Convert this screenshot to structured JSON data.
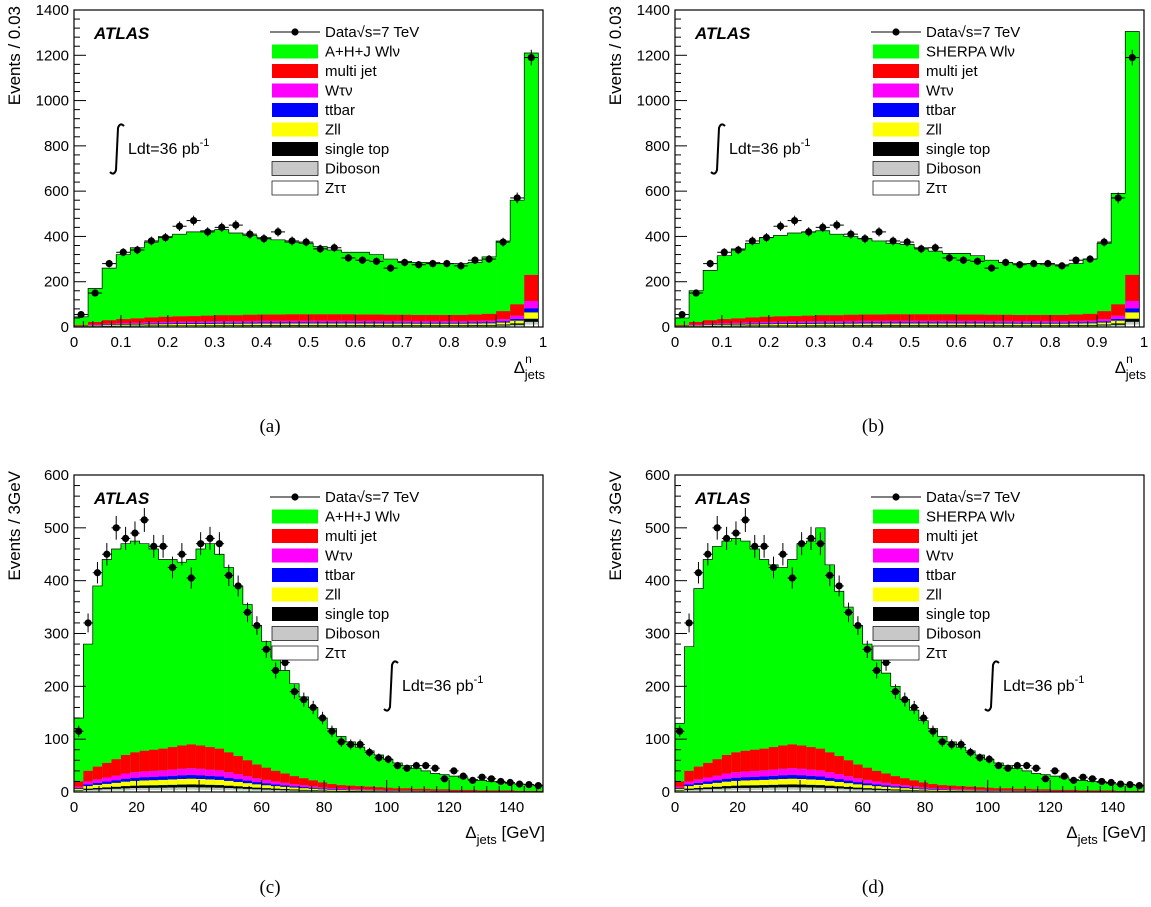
{
  "colors": {
    "multijet": "#ff0000",
    "wtaunu": "#ff00ff",
    "ttbar": "#0000ff",
    "zll": "#ffff00",
    "singletop": "#000000",
    "diboson": "#c8c8c8",
    "ztautau": "#ffffff",
    "signal": "#00ff00",
    "data": "#000000"
  },
  "chart_data": [
    {
      "type": "bar",
      "panel_caption": "(a)",
      "atlas_label": "ATLAS",
      "lumi_label": "Ldt=36 pb",
      "lumi_sup": "-1",
      "ylabel": "Events / 0.03",
      "xlabel": "Δ",
      "xlabel_sup": "n",
      "xlabel_sub": "jets",
      "xlabel_suffix": "",
      "xlim": [
        0,
        1
      ],
      "ylim": [
        0,
        1400
      ],
      "xticks": [
        0,
        0.1,
        0.2,
        0.3,
        0.4,
        0.5,
        0.6,
        0.7,
        0.8,
        0.9,
        1
      ],
      "xtick_labels": [
        "0",
        "0.1",
        "0.2",
        "0.3",
        "0.4",
        "0.5",
        "0.6",
        "0.7",
        "0.8",
        "0.9",
        "1"
      ],
      "yticks": [
        0,
        200,
        400,
        600,
        800,
        1000,
        1200,
        1400
      ],
      "legend": [
        {
          "label": "Data√s=7 TeV",
          "kind": "data"
        },
        {
          "label": "A+H+J Wlν",
          "kind": "signal"
        },
        {
          "label": "multi jet",
          "kind": "multijet"
        },
        {
          "label": "Wτν",
          "kind": "wtaunu"
        },
        {
          "label": "ttbar",
          "kind": "ttbar"
        },
        {
          "label": "Zll",
          "kind": "zll"
        },
        {
          "label": "single top",
          "kind": "singletop"
        },
        {
          "label": "Diboson",
          "kind": "diboson"
        },
        {
          "label": "Zττ",
          "kind": "ztautau"
        }
      ],
      "bin_edges": [
        0,
        0.03,
        0.06,
        0.09,
        0.12,
        0.15,
        0.18,
        0.21,
        0.24,
        0.27,
        0.3,
        0.33,
        0.36,
        0.39,
        0.42,
        0.45,
        0.48,
        0.51,
        0.54,
        0.57,
        0.6,
        0.63,
        0.66,
        0.69,
        0.72,
        0.75,
        0.78,
        0.81,
        0.84,
        0.87,
        0.9,
        0.93,
        0.96,
        0.99
      ],
      "stack_totals": [
        45,
        170,
        260,
        320,
        350,
        375,
        400,
        410,
        420,
        425,
        430,
        415,
        405,
        395,
        385,
        375,
        370,
        355,
        340,
        330,
        330,
        320,
        300,
        290,
        285,
        285,
        280,
        280,
        285,
        310,
        380,
        560,
        1210
      ],
      "background_sum": [
        8,
        22,
        30,
        35,
        38,
        42,
        45,
        47,
        48,
        50,
        52,
        52,
        54,
        55,
        55,
        56,
        56,
        56,
        56,
        56,
        55,
        55,
        54,
        54,
        53,
        53,
        53,
        53,
        55,
        58,
        70,
        100,
        230
      ],
      "data_x": [
        0.015,
        0.045,
        0.075,
        0.105,
        0.135,
        0.165,
        0.195,
        0.225,
        0.255,
        0.285,
        0.315,
        0.345,
        0.375,
        0.405,
        0.435,
        0.465,
        0.495,
        0.525,
        0.555,
        0.585,
        0.615,
        0.645,
        0.675,
        0.705,
        0.735,
        0.765,
        0.795,
        0.825,
        0.855,
        0.885,
        0.915,
        0.945,
        0.975
      ],
      "data_y": [
        55,
        150,
        280,
        330,
        340,
        380,
        395,
        445,
        470,
        420,
        440,
        450,
        410,
        390,
        420,
        380,
        375,
        345,
        350,
        305,
        295,
        290,
        260,
        285,
        275,
        280,
        280,
        270,
        295,
        300,
        375,
        570,
        1190
      ]
    },
    {
      "type": "bar",
      "panel_caption": "(b)",
      "atlas_label": "ATLAS",
      "lumi_label": "Ldt=36 pb",
      "lumi_sup": "-1",
      "ylabel": "Events / 0.03",
      "xlabel": "Δ",
      "xlabel_sup": "n",
      "xlabel_sub": "jets",
      "xlabel_suffix": "",
      "xlim": [
        0,
        1
      ],
      "ylim": [
        0,
        1400
      ],
      "xticks": [
        0,
        0.1,
        0.2,
        0.3,
        0.4,
        0.5,
        0.6,
        0.7,
        0.8,
        0.9,
        1
      ],
      "xtick_labels": [
        "0",
        "0.1",
        "0.2",
        "0.3",
        "0.4",
        "0.5",
        "0.6",
        "0.7",
        "0.8",
        "0.9",
        "1"
      ],
      "yticks": [
        0,
        200,
        400,
        600,
        800,
        1000,
        1200,
        1400
      ],
      "legend": [
        {
          "label": "Data√s=7 TeV",
          "kind": "data"
        },
        {
          "label": "SHERPA Wlν",
          "kind": "signal"
        },
        {
          "label": "multi jet",
          "kind": "multijet"
        },
        {
          "label": "Wτν",
          "kind": "wtaunu"
        },
        {
          "label": "ttbar",
          "kind": "ttbar"
        },
        {
          "label": "Zll",
          "kind": "zll"
        },
        {
          "label": "single top",
          "kind": "singletop"
        },
        {
          "label": "Diboson",
          "kind": "diboson"
        },
        {
          "label": "Zττ",
          "kind": "ztautau"
        }
      ],
      "bin_edges": [
        0,
        0.03,
        0.06,
        0.09,
        0.12,
        0.15,
        0.18,
        0.21,
        0.24,
        0.27,
        0.3,
        0.33,
        0.36,
        0.39,
        0.42,
        0.45,
        0.48,
        0.51,
        0.54,
        0.57,
        0.6,
        0.63,
        0.66,
        0.69,
        0.72,
        0.75,
        0.78,
        0.81,
        0.84,
        0.87,
        0.9,
        0.93,
        0.96,
        0.99
      ],
      "stack_totals": [
        40,
        160,
        250,
        315,
        345,
        370,
        395,
        405,
        415,
        420,
        425,
        410,
        400,
        390,
        380,
        370,
        365,
        350,
        335,
        325,
        325,
        315,
        295,
        285,
        280,
        280,
        275,
        275,
        280,
        300,
        370,
        590,
        1305
      ],
      "background_sum": [
        8,
        22,
        30,
        35,
        38,
        42,
        45,
        47,
        48,
        50,
        52,
        52,
        54,
        55,
        55,
        56,
        56,
        56,
        56,
        56,
        55,
        55,
        54,
        54,
        53,
        53,
        53,
        53,
        55,
        58,
        70,
        100,
        230
      ],
      "data_x": [
        0.015,
        0.045,
        0.075,
        0.105,
        0.135,
        0.165,
        0.195,
        0.225,
        0.255,
        0.285,
        0.315,
        0.345,
        0.375,
        0.405,
        0.435,
        0.465,
        0.495,
        0.525,
        0.555,
        0.585,
        0.615,
        0.645,
        0.675,
        0.705,
        0.735,
        0.765,
        0.795,
        0.825,
        0.855,
        0.885,
        0.915,
        0.945,
        0.975
      ],
      "data_y": [
        55,
        150,
        280,
        330,
        340,
        380,
        395,
        445,
        470,
        420,
        440,
        450,
        410,
        390,
        420,
        380,
        375,
        345,
        350,
        305,
        295,
        290,
        260,
        285,
        275,
        280,
        280,
        270,
        295,
        300,
        375,
        570,
        1190
      ]
    },
    {
      "type": "bar",
      "panel_caption": "(c)",
      "atlas_label": "ATLAS",
      "lumi_label": "Ldt=36 pb",
      "lumi_sup": "-1",
      "ylabel": "Events / 3GeV",
      "xlabel": "Δ",
      "xlabel_sup": "",
      "xlabel_sub": "jets",
      "xlabel_suffix": " [GeV]",
      "xlim": [
        0,
        150
      ],
      "ylim": [
        0,
        600
      ],
      "xticks": [
        0,
        20,
        40,
        60,
        80,
        100,
        120,
        140
      ],
      "xtick_labels": [
        "0",
        "20",
        "40",
        "60",
        "80",
        "100",
        "120",
        "140"
      ],
      "yticks": [
        0,
        100,
        200,
        300,
        400,
        500,
        600
      ],
      "legend": [
        {
          "label": "Data√s=7 TeV",
          "kind": "data"
        },
        {
          "label": "A+H+J Wlν",
          "kind": "signal"
        },
        {
          "label": "multi jet",
          "kind": "multijet"
        },
        {
          "label": "Wτν",
          "kind": "wtaunu"
        },
        {
          "label": "ttbar",
          "kind": "ttbar"
        },
        {
          "label": "Zll",
          "kind": "zll"
        },
        {
          "label": "single top",
          "kind": "singletop"
        },
        {
          "label": "Diboson",
          "kind": "diboson"
        },
        {
          "label": "Zττ",
          "kind": "ztautau"
        }
      ],
      "bin_edges": [
        0,
        3,
        6,
        9,
        12,
        15,
        18,
        21,
        24,
        27,
        30,
        33,
        36,
        39,
        42,
        45,
        48,
        51,
        54,
        57,
        60,
        63,
        66,
        69,
        72,
        75,
        78,
        81,
        84,
        87,
        90,
        93,
        96,
        99,
        102,
        105,
        108,
        111,
        114,
        117,
        120,
        123,
        126,
        129,
        132,
        135,
        138,
        141,
        144,
        147,
        150
      ],
      "stack_totals": [
        140,
        280,
        390,
        440,
        460,
        470,
        475,
        470,
        460,
        440,
        440,
        435,
        440,
        460,
        470,
        450,
        425,
        390,
        355,
        315,
        285,
        255,
        230,
        205,
        180,
        160,
        140,
        120,
        105,
        95,
        85,
        78,
        70,
        62,
        55,
        50,
        45,
        40,
        35,
        33,
        30,
        27,
        24,
        22,
        20,
        18,
        16,
        15,
        14,
        13
      ],
      "background_sum": [
        20,
        40,
        48,
        55,
        62,
        70,
        75,
        78,
        80,
        82,
        85,
        88,
        90,
        88,
        85,
        82,
        75,
        68,
        60,
        52,
        46,
        40,
        35,
        30,
        26,
        22,
        18,
        15,
        13,
        12,
        11,
        10,
        9,
        8,
        7,
        7,
        6,
        6,
        5,
        5,
        4,
        4,
        4,
        3,
        3,
        3,
        3,
        2,
        2,
        2
      ],
      "data_x": [
        1.5,
        4.5,
        7.5,
        10.5,
        13.5,
        16.5,
        19.5,
        22.5,
        25.5,
        28.5,
        31.5,
        34.5,
        37.5,
        40.5,
        43.5,
        46.5,
        49.5,
        52.5,
        55.5,
        58.5,
        61.5,
        64.5,
        67.5,
        70.5,
        73.5,
        76.5,
        79.5,
        82.5,
        85.5,
        88.5,
        91.5,
        94.5,
        97.5,
        100.5,
        103.5,
        106.5,
        109.5,
        112.5,
        115.5,
        118.5,
        121.5,
        124.5,
        127.5,
        130.5,
        133.5,
        136.5,
        139.5,
        142.5,
        145.5,
        148.5
      ],
      "data_y": [
        115,
        320,
        415,
        450,
        500,
        480,
        490,
        515,
        465,
        465,
        425,
        450,
        405,
        470,
        480,
        470,
        410,
        390,
        340,
        315,
        270,
        230,
        245,
        190,
        175,
        160,
        140,
        115,
        95,
        90,
        90,
        75,
        65,
        62,
        50,
        45,
        50,
        50,
        45,
        25,
        40,
        30,
        22,
        28,
        25,
        20,
        18,
        15,
        14,
        12
      ]
    },
    {
      "type": "bar",
      "panel_caption": "(d)",
      "atlas_label": "ATLAS",
      "lumi_label": "Ldt=36 pb",
      "lumi_sup": "-1",
      "ylabel": "Events / 3GeV",
      "xlabel": "Δ",
      "xlabel_sup": "",
      "xlabel_sub": "jets",
      "xlabel_suffix": " [GeV]",
      "xlim": [
        0,
        150
      ],
      "ylim": [
        0,
        600
      ],
      "xticks": [
        0,
        20,
        40,
        60,
        80,
        100,
        120,
        140
      ],
      "xtick_labels": [
        "0",
        "20",
        "40",
        "60",
        "80",
        "100",
        "120",
        "140"
      ],
      "yticks": [
        0,
        100,
        200,
        300,
        400,
        500,
        600
      ],
      "legend": [
        {
          "label": "Data√s=7 TeV",
          "kind": "data"
        },
        {
          "label": "SHERPA Wlν",
          "kind": "signal"
        },
        {
          "label": "multi jet",
          "kind": "multijet"
        },
        {
          "label": "Wτν",
          "kind": "wtaunu"
        },
        {
          "label": "ttbar",
          "kind": "ttbar"
        },
        {
          "label": "Zll",
          "kind": "zll"
        },
        {
          "label": "single top",
          "kind": "singletop"
        },
        {
          "label": "Diboson",
          "kind": "diboson"
        },
        {
          "label": "Zττ",
          "kind": "ztautau"
        }
      ],
      "bin_edges": [
        0,
        3,
        6,
        9,
        12,
        15,
        18,
        21,
        24,
        27,
        30,
        33,
        36,
        39,
        42,
        45,
        48,
        51,
        54,
        57,
        60,
        63,
        66,
        69,
        72,
        75,
        78,
        81,
        84,
        87,
        90,
        93,
        96,
        99,
        102,
        105,
        108,
        111,
        114,
        117,
        120,
        123,
        126,
        129,
        132,
        135,
        138,
        141,
        144,
        147,
        150
      ],
      "stack_totals": [
        130,
        275,
        385,
        440,
        465,
        475,
        480,
        475,
        460,
        440,
        430,
        425,
        440,
        470,
        475,
        500,
        430,
        380,
        350,
        315,
        280,
        250,
        225,
        200,
        175,
        155,
        135,
        120,
        105,
        95,
        85,
        78,
        70,
        62,
        55,
        50,
        45,
        40,
        35,
        33,
        30,
        27,
        24,
        22,
        20,
        18,
        16,
        15,
        14,
        13
      ],
      "background_sum": [
        20,
        40,
        48,
        55,
        62,
        70,
        75,
        78,
        80,
        82,
        85,
        88,
        90,
        88,
        85,
        82,
        75,
        68,
        60,
        52,
        46,
        40,
        35,
        30,
        26,
        22,
        18,
        15,
        13,
        12,
        11,
        10,
        9,
        8,
        7,
        7,
        6,
        6,
        5,
        5,
        4,
        4,
        4,
        3,
        3,
        3,
        3,
        2,
        2,
        2
      ],
      "data_x": [
        1.5,
        4.5,
        7.5,
        10.5,
        13.5,
        16.5,
        19.5,
        22.5,
        25.5,
        28.5,
        31.5,
        34.5,
        37.5,
        40.5,
        43.5,
        46.5,
        49.5,
        52.5,
        55.5,
        58.5,
        61.5,
        64.5,
        67.5,
        70.5,
        73.5,
        76.5,
        79.5,
        82.5,
        85.5,
        88.5,
        91.5,
        94.5,
        97.5,
        100.5,
        103.5,
        106.5,
        109.5,
        112.5,
        115.5,
        118.5,
        121.5,
        124.5,
        127.5,
        130.5,
        133.5,
        136.5,
        139.5,
        142.5,
        145.5,
        148.5
      ],
      "data_y": [
        115,
        320,
        415,
        450,
        500,
        480,
        490,
        515,
        465,
        465,
        425,
        450,
        405,
        470,
        480,
        470,
        410,
        390,
        340,
        315,
        270,
        230,
        245,
        190,
        175,
        160,
        140,
        115,
        95,
        90,
        90,
        75,
        65,
        62,
        50,
        45,
        50,
        50,
        45,
        25,
        40,
        30,
        22,
        28,
        25,
        20,
        18,
        15,
        14,
        12
      ]
    }
  ]
}
